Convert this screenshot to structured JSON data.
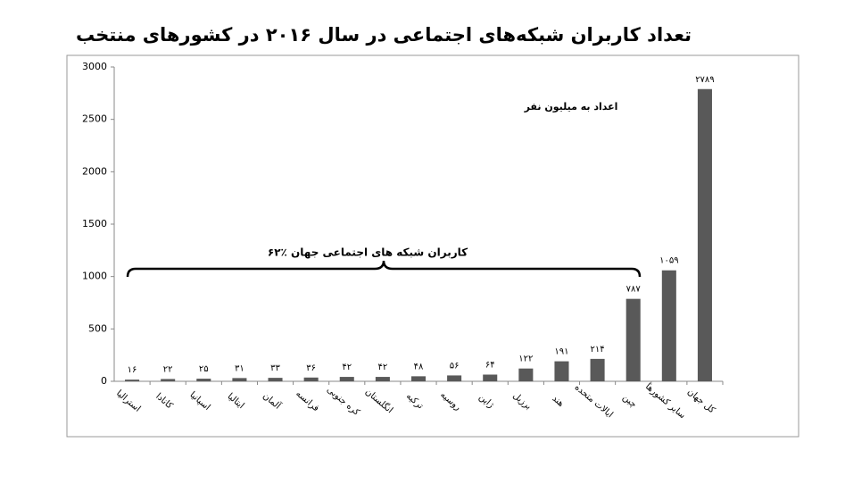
{
  "chart_data": {
    "type": "bar",
    "title": "تعداد کاربران شبکه‌های اجتماعی در سال ۲۰۱۶ در کشورهای منتخب",
    "annotations": [
      "اعداد به میلیون نفر",
      "۶۲٪ کاربران شبکه های اجتماعی جهان"
    ],
    "categories": [
      "استرالیا",
      "کانادا",
      "اسپانیا",
      "ایتالیا",
      "آلمان",
      "فرانسه",
      "کره جنوبی",
      "انگلستان",
      "ترکیه",
      "روسیه",
      "ژاپن",
      "برزیل",
      "هند",
      "ایالات متحده",
      "چین",
      "سایر کشورها",
      "کل جهان"
    ],
    "values": [
      16,
      22,
      25,
      31,
      33,
      36,
      42,
      42,
      48,
      56,
      64,
      122,
      191,
      214,
      787,
      1059,
      2789
    ],
    "value_labels": [
      "۱۶",
      "۲۲",
      "۲۵",
      "۳۱",
      "۳۳",
      "۳۶",
      "۴۲",
      "۴۲",
      "۴۸",
      "۵۶",
      "۶۴",
      "۱۲۲",
      "۱۹۱",
      "۲۱۴",
      "۷۸۷",
      "۱۰۵۹",
      "۲۷۸۹"
    ],
    "color": "#595959",
    "ylim": [
      0,
      3000
    ],
    "yticks": [
      0,
      500,
      1000,
      1500,
      2000,
      2500,
      3000
    ],
    "grid": false
  }
}
